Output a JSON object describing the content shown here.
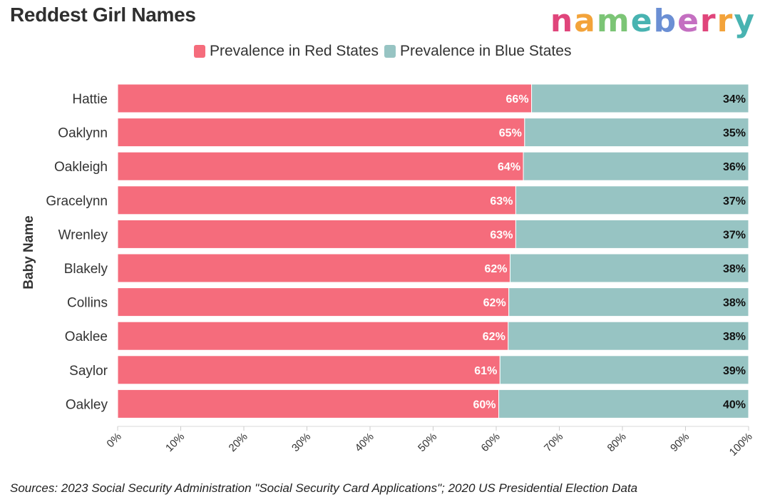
{
  "header": {
    "title": "Reddest Girl Names",
    "logo_text": "nameberry",
    "logo_colors": [
      "#e0457b",
      "#f3a33a",
      "#7cc576",
      "#48b3b1",
      "#6b8fd4",
      "#c46fc1",
      "#e0457b",
      "#f3a33a",
      "#48b3b1"
    ]
  },
  "legend": {
    "red_label": "Prevalence in Red States",
    "blue_label": "Prevalence in Blue States"
  },
  "colors": {
    "red": "#f56c7c",
    "blue": "#97c4c3"
  },
  "footer": {
    "source": "Sources: 2023 Social Security Administration \"Social Security Card Applications\"; 2020 US Presidential Election Data"
  },
  "chart_data": {
    "type": "bar",
    "orientation": "horizontal",
    "stacked": true,
    "title": "Reddest Girl Names",
    "ylabel": "Baby Name",
    "xlabel": "",
    "xlim": [
      0,
      100
    ],
    "x_ticks": [
      "0%",
      "10%",
      "20%",
      "30%",
      "40%",
      "50%",
      "60%",
      "70%",
      "80%",
      "90%",
      "100%"
    ],
    "legend_position": "top",
    "categories": [
      "Hattie",
      "Oaklynn",
      "Oakleigh",
      "Gracelynn",
      "Wrenley",
      "Blakely",
      "Collins",
      "Oaklee",
      "Saylor",
      "Oakley"
    ],
    "series": [
      {
        "name": "Prevalence in Red States",
        "values": [
          65.6,
          64.5,
          64.3,
          63.1,
          63.1,
          62.2,
          62.0,
          61.9,
          60.6,
          60.4
        ],
        "labels": [
          "66%",
          "65%",
          "64%",
          "63%",
          "63%",
          "62%",
          "62%",
          "62%",
          "61%",
          "60%"
        ]
      },
      {
        "name": "Prevalence in Blue States",
        "values": [
          34.4,
          35.5,
          35.7,
          36.9,
          36.9,
          37.8,
          38.0,
          38.1,
          39.4,
          39.6
        ],
        "labels": [
          "34%",
          "35%",
          "36%",
          "37%",
          "37%",
          "38%",
          "38%",
          "38%",
          "39%",
          "40%"
        ]
      }
    ]
  }
}
